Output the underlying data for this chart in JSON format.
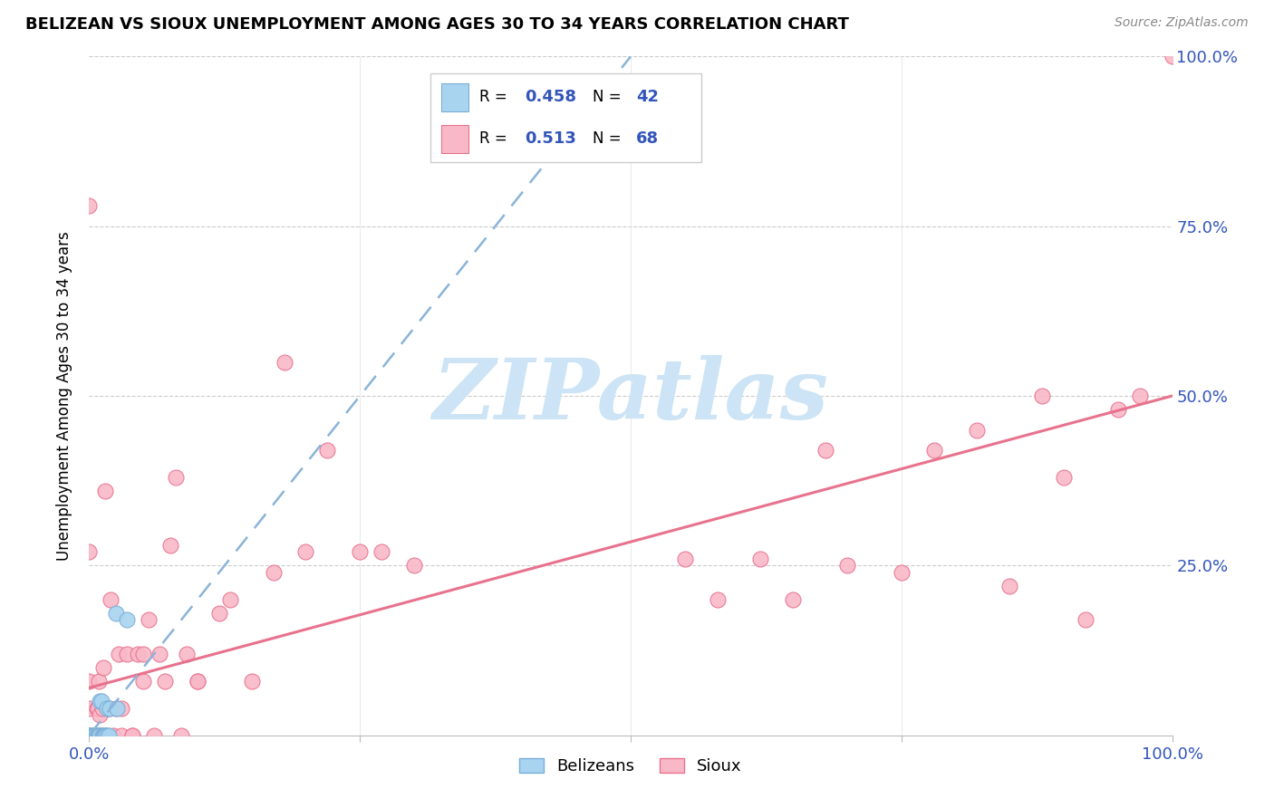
{
  "title": "BELIZEAN VS SIOUX UNEMPLOYMENT AMONG AGES 30 TO 34 YEARS CORRELATION CHART",
  "source": "Source: ZipAtlas.com",
  "ylabel": "Unemployment Among Ages 30 to 34 years",
  "xlim": [
    0.0,
    1.0
  ],
  "ylim": [
    0.0,
    1.0
  ],
  "belizean_color": "#a8d4f0",
  "belizean_edge_color": "#7aaed6",
  "sioux_color": "#f9b8c8",
  "sioux_edge_color": "#e8728e",
  "belizean_R": 0.458,
  "belizean_N": 42,
  "sioux_R": 0.513,
  "sioux_N": 68,
  "belizean_line_color": "#8ab4d8",
  "sioux_line_color": "#e8728e",
  "watermark": "ZIPatlas",
  "watermark_color": "#cce4f5",
  "legend_R_N_color": "#3355bb",
  "tick_color": "#3355bb",
  "belizean_scatter_x": [
    0.0,
    0.0,
    0.0,
    0.0,
    0.0,
    0.0,
    0.0,
    0.0,
    0.0,
    0.0,
    0.0,
    0.0,
    0.0,
    0.0,
    0.0,
    0.0,
    0.0,
    0.0,
    0.0,
    0.004,
    0.004,
    0.005,
    0.006,
    0.007,
    0.008,
    0.009,
    0.01,
    0.01,
    0.01,
    0.01,
    0.011,
    0.012,
    0.013,
    0.014,
    0.015,
    0.016,
    0.016,
    0.018,
    0.019,
    0.025,
    0.026,
    0.035
  ],
  "belizean_scatter_y": [
    0.0,
    0.0,
    0.0,
    0.0,
    0.0,
    0.0,
    0.0,
    0.0,
    0.0,
    0.0,
    0.0,
    0.0,
    0.0,
    0.0,
    0.0,
    0.0,
    0.0,
    0.0,
    0.0,
    0.0,
    0.0,
    0.0,
    0.0,
    0.0,
    0.0,
    0.0,
    0.0,
    0.0,
    0.0,
    0.05,
    0.05,
    0.0,
    0.0,
    0.0,
    0.0,
    0.04,
    0.0,
    0.0,
    0.04,
    0.18,
    0.04,
    0.17
  ],
  "sioux_scatter_x": [
    0.0,
    0.0,
    0.0,
    0.0,
    0.0,
    0.004,
    0.005,
    0.006,
    0.007,
    0.008,
    0.009,
    0.01,
    0.01,
    0.01,
    0.012,
    0.013,
    0.015,
    0.016,
    0.017,
    0.018,
    0.02,
    0.022,
    0.025,
    0.027,
    0.03,
    0.03,
    0.035,
    0.04,
    0.04,
    0.045,
    0.05,
    0.05,
    0.055,
    0.06,
    0.065,
    0.07,
    0.075,
    0.08,
    0.085,
    0.09,
    0.1,
    0.1,
    0.12,
    0.13,
    0.15,
    0.17,
    0.18,
    0.2,
    0.22,
    0.25,
    0.27,
    0.3,
    0.55,
    0.58,
    0.62,
    0.65,
    0.68,
    0.7,
    0.75,
    0.78,
    0.82,
    0.85,
    0.88,
    0.9,
    0.92,
    0.95,
    0.97,
    1.0
  ],
  "sioux_scatter_y": [
    0.0,
    0.04,
    0.08,
    0.27,
    0.78,
    0.0,
    0.0,
    0.0,
    0.04,
    0.04,
    0.08,
    0.0,
    0.0,
    0.03,
    0.04,
    0.1,
    0.36,
    0.0,
    0.04,
    0.04,
    0.2,
    0.0,
    0.04,
    0.12,
    0.0,
    0.04,
    0.12,
    0.0,
    0.0,
    0.12,
    0.08,
    0.12,
    0.17,
    0.0,
    0.12,
    0.08,
    0.28,
    0.38,
    0.0,
    0.12,
    0.08,
    0.08,
    0.18,
    0.2,
    0.08,
    0.24,
    0.55,
    0.27,
    0.42,
    0.27,
    0.27,
    0.25,
    0.26,
    0.2,
    0.26,
    0.2,
    0.42,
    0.25,
    0.24,
    0.42,
    0.45,
    0.22,
    0.5,
    0.38,
    0.17,
    0.48,
    0.5,
    1.0
  ],
  "sioux_line_x": [
    0.0,
    1.0
  ],
  "sioux_line_y": [
    0.07,
    0.5
  ],
  "belizean_line_x": [
    0.0,
    0.5
  ],
  "belizean_line_y": [
    0.0,
    1.0
  ]
}
